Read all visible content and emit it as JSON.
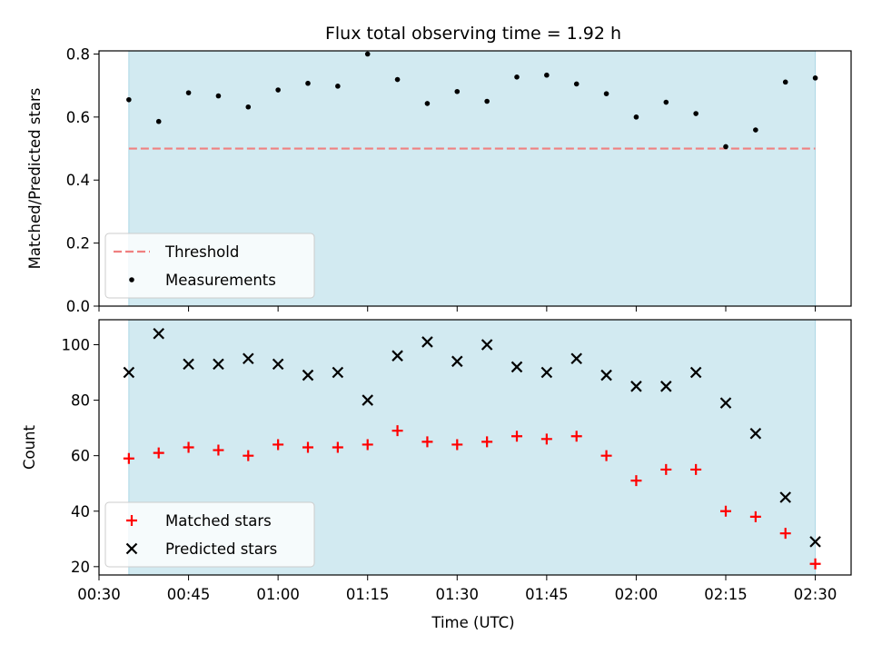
{
  "chart_data": {
    "title": "Flux total observing time = 1.92 h",
    "xlabel": "Time (UTC)",
    "shaded_span": [
      "00:35",
      "02:30"
    ],
    "shade_color": "#add8e6",
    "x_tick_labels": [
      "00:30",
      "00:45",
      "01:00",
      "01:15",
      "01:30",
      "01:45",
      "02:00",
      "02:15",
      "02:30"
    ],
    "x_ticks": [
      "00:30",
      "00:45",
      "01:00",
      "01:15",
      "01:30",
      "01:45",
      "02:00",
      "02:15",
      "02:30"
    ],
    "xlim": [
      "00:30",
      "02:36"
    ],
    "times": [
      "00:35",
      "00:40",
      "00:45",
      "00:50",
      "00:55",
      "01:00",
      "01:05",
      "01:10",
      "01:15",
      "01:20",
      "01:25",
      "01:30",
      "01:35",
      "01:40",
      "01:45",
      "01:50",
      "01:55",
      "02:00",
      "02:05",
      "02:10",
      "02:15",
      "02:20",
      "02:25",
      "02:30"
    ],
    "panels": [
      {
        "type": "scatter",
        "ylabel": "Matched/Predicted stars",
        "ylim": [
          0,
          0.81
        ],
        "yticks": [
          0.0,
          0.2,
          0.4,
          0.6,
          0.8
        ],
        "ytick_labels": [
          "0.0",
          "0.2",
          "0.4",
          "0.6",
          "0.8"
        ],
        "legend_position": "lower-left",
        "threshold": {
          "name": "Threshold",
          "value": 0.5,
          "color": "#f08080",
          "style": "dashed"
        },
        "series": [
          {
            "name": "Measurements",
            "marker": "dot",
            "color": "#000000",
            "values": [
              0.655,
              0.586,
              0.677,
              0.667,
              0.632,
              0.686,
              0.707,
              0.698,
              0.8,
              0.719,
              0.643,
              0.681,
              0.65,
              0.727,
              0.733,
              0.705,
              0.674,
              0.6,
              0.647,
              0.611,
              0.506,
              0.559,
              0.711,
              0.724
            ]
          }
        ]
      },
      {
        "type": "scatter",
        "ylabel": "Count",
        "ylim": [
          17,
          109
        ],
        "yticks": [
          20,
          40,
          60,
          80,
          100
        ],
        "ytick_labels": [
          "20",
          "40",
          "60",
          "80",
          "100"
        ],
        "legend_position": "lower-left",
        "series": [
          {
            "name": "Matched stars",
            "marker": "plus",
            "color": "#ff0000",
            "values": [
              59,
              61,
              63,
              62,
              60,
              64,
              63,
              63,
              64,
              69,
              65,
              64,
              65,
              67,
              66,
              67,
              60,
              51,
              55,
              55,
              40,
              38,
              32,
              21
            ]
          },
          {
            "name": "Predicted stars",
            "marker": "x",
            "color": "#000000",
            "values": [
              90,
              104,
              93,
              93,
              95,
              93,
              89,
              90,
              80,
              96,
              101,
              94,
              100,
              92,
              90,
              95,
              89,
              85,
              85,
              90,
              79,
              68,
              45,
              29
            ]
          }
        ]
      }
    ]
  }
}
